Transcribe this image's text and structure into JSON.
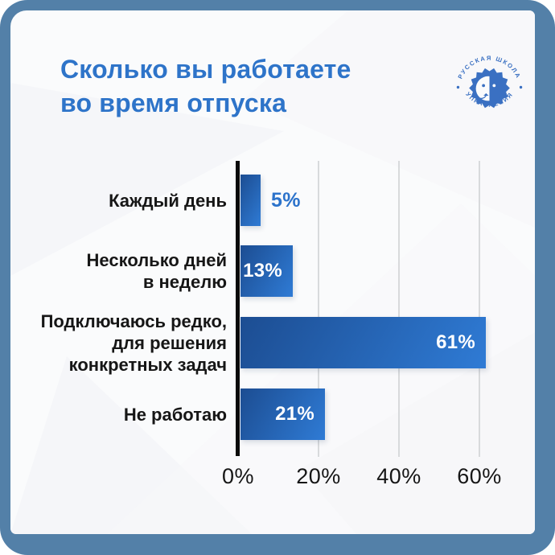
{
  "header": {
    "title": [
      "Сколько вы работаете",
      "во время отпуска"
    ]
  },
  "logo": {
    "arc_text_top": "РУССКАЯ ШКОЛА",
    "arc_text_bottom": "УПРАВЛЕНИЯ"
  },
  "chart_data": {
    "type": "bar",
    "orientation": "horizontal",
    "title": "Сколько вы работаете во время отпуска",
    "categories": [
      "Каждый день",
      "Несколько дней в неделю",
      "Подключаюсь редко, для решения конкретных задач",
      "Не работаю"
    ],
    "category_lines": [
      [
        "Каждый день"
      ],
      [
        "Несколько дней",
        "в неделю"
      ],
      [
        "Подключаюсь редко,",
        "для решения",
        "конкретных задач"
      ],
      [
        "Не работаю"
      ]
    ],
    "values": [
      5,
      13,
      61,
      21
    ],
    "value_labels": [
      "5%",
      "13%",
      "61%",
      "21%"
    ],
    "value_label_position": [
      "outside",
      "inside",
      "inside",
      "inside"
    ],
    "x_ticks": [
      {
        "value": 0,
        "label": "0%"
      },
      {
        "value": 20,
        "label": "20%"
      },
      {
        "value": 40,
        "label": "40%"
      },
      {
        "value": 60,
        "label": "60%"
      }
    ],
    "xlim": [
      0,
      65
    ],
    "grid": true,
    "legend": false
  },
  "colors": {
    "frame": "#5380A8",
    "card_bg": "#FAFBFC",
    "title": "#2E74C9",
    "bar_gradient_start": "#1C4D92",
    "bar_gradient_end": "#2F7BD5",
    "value_outside": "#2C73CB",
    "text": "#161616",
    "gridline": "#D8DADC",
    "axis": "#0B0B0B",
    "logo": "#3A70C2"
  }
}
